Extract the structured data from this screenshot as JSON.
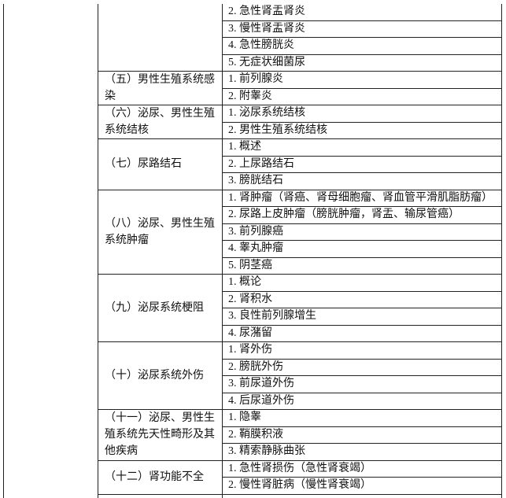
{
  "table": {
    "sections": [
      {
        "items": [
          "2. 急性肾盂肾炎",
          "3. 慢性肾盂肾炎",
          "4. 急性膀胱炎",
          "5. 无症状细菌尿"
        ]
      },
      {
        "category": "（五）男性生殖系统感染",
        "items": [
          "1. 前列腺炎",
          "2. 附睾炎"
        ]
      },
      {
        "category": "（六）泌尿、男性生殖系统结核",
        "items": [
          "1. 泌尿系统结核",
          "2. 男性生殖系统结核"
        ]
      },
      {
        "category": "（七）尿路结石",
        "items": [
          "1. 概述",
          "2. 上尿路结石",
          "3. 膀胱结石"
        ]
      },
      {
        "category": "（八）泌尿、男性生殖系统肿瘤",
        "items": [
          "1. 肾肿瘤（肾癌、肾母细胞瘤、肾血管平滑肌脂肪瘤）",
          "2. 尿路上皮肿瘤（膀胱肿瘤，肾盂、输尿管癌）",
          "3. 前列腺癌",
          "4. 睾丸肿瘤",
          "5. 阴茎癌"
        ]
      },
      {
        "category": "（九）泌尿系统梗阻",
        "items": [
          "1. 概论",
          "2. 肾积水",
          "3. 良性前列腺增生",
          "4. 尿潴留"
        ]
      },
      {
        "category": "（十）泌尿系统外伤",
        "items": [
          "1. 肾外伤",
          "2. 膀胱外伤",
          "3. 前尿道外伤",
          "4. 后尿道外伤"
        ]
      },
      {
        "category": "（十一）泌尿、男性生殖系统先天性畸形及其他疾病",
        "items": [
          "1. 隐睾",
          "2. 鞘膜积液",
          "3. 精索静脉曲张"
        ]
      },
      {
        "category": "（十二）肾功能不全",
        "items": [
          "1. 急性肾损伤（急性肾衰竭）",
          "2. 慢性肾脏病（慢性肾衰竭）"
        ]
      }
    ]
  }
}
